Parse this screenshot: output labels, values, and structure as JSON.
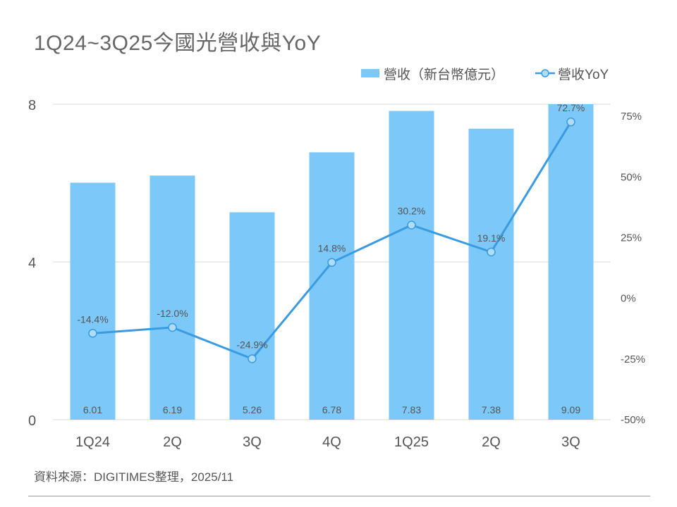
{
  "title": "1Q24~3Q25今國光營收與YoY",
  "legend": {
    "bar_label": "營收（新台幣億元）",
    "line_label": "營收YoY"
  },
  "colors": {
    "bar": "#7CC8F8",
    "line": "#3A9BE0",
    "marker_fill": "#AEDCF9",
    "grid": "#D9D9D9",
    "axis_text": "#555555"
  },
  "footer": {
    "source": "資料來源：DIGITIMES整理，2025/11"
  },
  "chart_data": {
    "type": "bar+line",
    "categories": [
      "1Q24",
      "2Q",
      "3Q",
      "4Q",
      "1Q25",
      "2Q",
      "3Q"
    ],
    "series": [
      {
        "name": "營收（新台幣億元）",
        "type": "bar",
        "axis": "left",
        "values": [
          6.01,
          6.19,
          5.26,
          6.78,
          7.83,
          7.38,
          9.09
        ],
        "labels": [
          "6.01",
          "6.19",
          "5.26",
          "6.78",
          "7.83",
          "7.38",
          "9.09"
        ]
      },
      {
        "name": "營收YoY",
        "type": "line",
        "axis": "right",
        "values": [
          -14.4,
          -12.0,
          -24.9,
          14.8,
          30.2,
          19.1,
          72.7
        ],
        "labels": [
          "-14.4%",
          "-12.0%",
          "-24.9%",
          "14.8%",
          "30.2%",
          "19.1%",
          "72.7%"
        ]
      }
    ],
    "left_axis": {
      "min": 0,
      "max": 8,
      "ticks": [
        0,
        4,
        8
      ],
      "tick_labels": [
        "0",
        "4",
        "8"
      ]
    },
    "right_axis": {
      "min": -50,
      "max": 80,
      "ticks": [
        -50,
        -25,
        0,
        25,
        50,
        75
      ],
      "tick_labels": [
        "-50%",
        "-25%",
        "0%",
        "25%",
        "50%",
        "75%"
      ]
    },
    "grid": true,
    "legend_position": "top-right"
  }
}
